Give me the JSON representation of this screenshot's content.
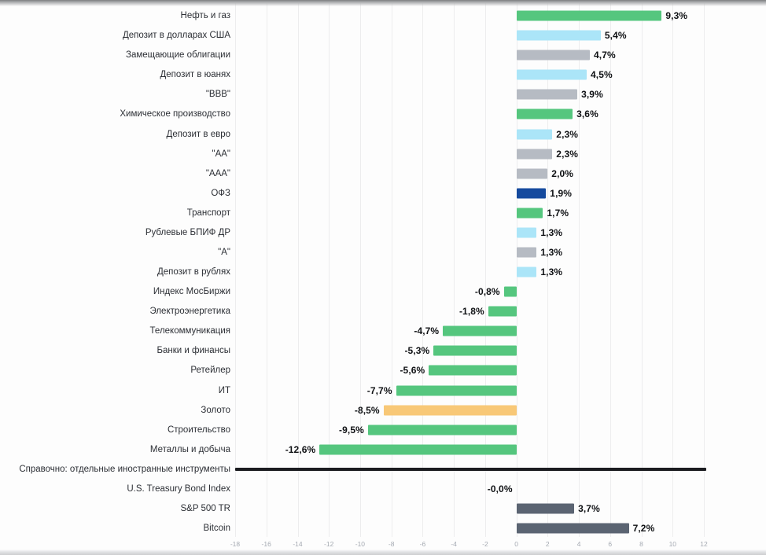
{
  "chart_data": {
    "type": "bar",
    "orientation": "horizontal",
    "title": "",
    "unit": "%",
    "decimal_separator": ",",
    "grid": true,
    "x_axis": {
      "min": -18,
      "max": 12,
      "step": 2,
      "tick_labels": [
        "-18",
        "-16",
        "-14",
        "-12",
        "-10",
        "-8",
        "-6",
        "-4",
        "-2",
        "0",
        "2",
        "4",
        "6",
        "8",
        "10",
        "12"
      ]
    },
    "colors": {
      "green": "#55c67e",
      "lightblue": "#abe5f8",
      "gray": "#b6bbc3",
      "navy": "#154a9e",
      "orange": "#f8c877",
      "slate": "#5b6472",
      "separator": "#1b1c20",
      "label_text": "#2c2f35",
      "value_text": "#0f1114",
      "tick_text": "#a5aab2",
      "gridline": "#ededee"
    },
    "rows": [
      {
        "label": "Нефть и газ",
        "value": 9.3,
        "display": "9,3%",
        "color": "green"
      },
      {
        "label": "Депозит в долларах США",
        "value": 5.4,
        "display": "5,4%",
        "color": "lightblue"
      },
      {
        "label": "Замещающие облигации",
        "value": 4.7,
        "display": "4,7%",
        "color": "gray"
      },
      {
        "label": "Депозит в юанях",
        "value": 4.5,
        "display": "4,5%",
        "color": "lightblue"
      },
      {
        "label": "\"BBB\"",
        "value": 3.9,
        "display": "3,9%",
        "color": "gray"
      },
      {
        "label": "Химическое производство",
        "value": 3.6,
        "display": "3,6%",
        "color": "green"
      },
      {
        "label": "Депозит в евро",
        "value": 2.3,
        "display": "2,3%",
        "color": "lightblue"
      },
      {
        "label": "\"AA\"",
        "value": 2.3,
        "display": "2,3%",
        "color": "gray"
      },
      {
        "label": "\"AAA\"",
        "value": 2.0,
        "display": "2,0%",
        "color": "gray"
      },
      {
        "label": "ОФЗ",
        "value": 1.9,
        "display": "1,9%",
        "color": "navy"
      },
      {
        "label": "Транспорт",
        "value": 1.7,
        "display": "1,7%",
        "color": "green"
      },
      {
        "label": "Рублевые БПИФ ДР",
        "value": 1.3,
        "display": "1,3%",
        "color": "lightblue"
      },
      {
        "label": "\"A\"",
        "value": 1.3,
        "display": "1,3%",
        "color": "gray"
      },
      {
        "label": "Депозит в рублях",
        "value": 1.3,
        "display": "1,3%",
        "color": "lightblue"
      },
      {
        "label": "Индекс МосБиржи",
        "value": -0.8,
        "display": "-0,8%",
        "color": "green"
      },
      {
        "label": "Электроэнергетика",
        "value": -1.8,
        "display": "-1,8%",
        "color": "green"
      },
      {
        "label": "Телекоммуникация",
        "value": -4.7,
        "display": "-4,7%",
        "color": "green"
      },
      {
        "label": "Банки и финансы",
        "value": -5.3,
        "display": "-5,3%",
        "color": "green"
      },
      {
        "label": "Ретейлер",
        "value": -5.6,
        "display": "-5,6%",
        "color": "green"
      },
      {
        "label": "ИТ",
        "value": -7.7,
        "display": "-7,7%",
        "color": "green"
      },
      {
        "label": "Золото",
        "value": -8.5,
        "display": "-8,5%",
        "color": "orange"
      },
      {
        "label": "Строительство",
        "value": -9.5,
        "display": "-9,5%",
        "color": "green"
      },
      {
        "label": "Металлы и добыча",
        "value": -12.6,
        "display": "-12,6%",
        "color": "green"
      },
      {
        "label": "Справочно: отдельные иностранные инструменты",
        "type": "separator"
      },
      {
        "label": "U.S. Treasury Bond Index",
        "value": 0,
        "display": "-0,0%",
        "color": "slate",
        "negative_side": true,
        "no_bar": true
      },
      {
        "label": "S&P 500 TR",
        "value": 3.7,
        "display": "3,7%",
        "color": "slate"
      },
      {
        "label": "Bitcoin",
        "value": 7.2,
        "display": "7,2%",
        "color": "slate"
      }
    ]
  },
  "layout_text": {}
}
